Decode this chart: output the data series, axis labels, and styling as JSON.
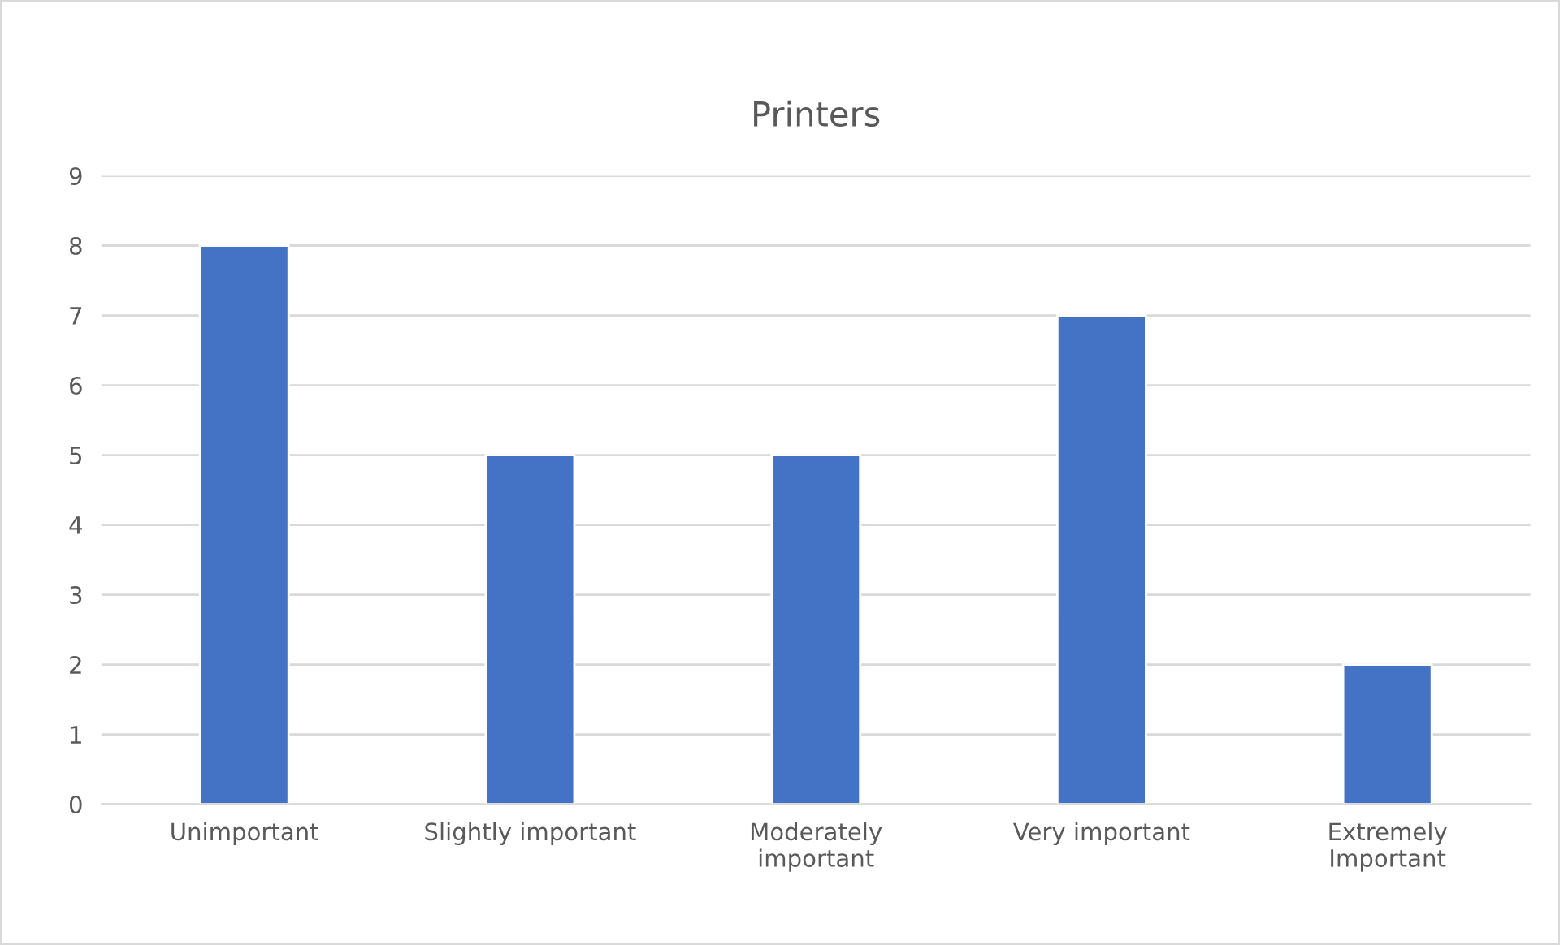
{
  "chart_data": {
    "type": "bar",
    "title": "Printers",
    "categories": [
      "Unimportant",
      "Slightly important",
      "Moderately important",
      "Very important",
      "Extremely Important"
    ],
    "values": [
      8,
      5,
      5,
      7,
      2
    ],
    "color": "#4472c4",
    "ylim": [
      0,
      9
    ],
    "yticks": [
      0,
      1,
      2,
      3,
      4,
      5,
      6,
      7,
      8,
      9
    ],
    "grid": "y",
    "legend": false
  }
}
